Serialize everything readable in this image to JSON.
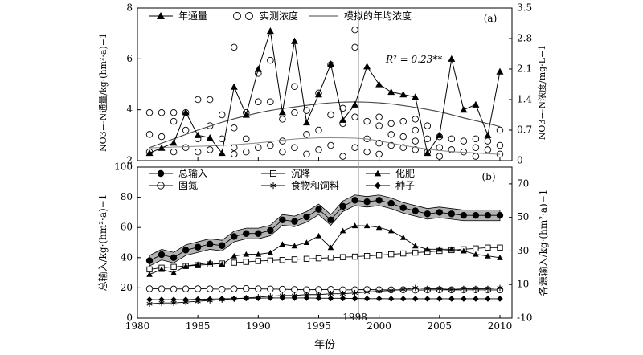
{
  "chart_data": [
    {
      "panel": "(a)",
      "type": "line",
      "x_axis": {
        "range": [
          1980,
          2011
        ],
        "ticks": [],
        "label": ""
      },
      "left_axis": {
        "label": "NO3−-N通量/kg·(hm²·a)−1",
        "range": [
          2,
          8
        ],
        "ticks": [
          2,
          4,
          6,
          8
        ]
      },
      "right_axis": {
        "label": "NO3−-N浓度/mg·L−1",
        "range": [
          0,
          3.5
        ],
        "ticks": [
          0,
          0.7,
          1.4,
          2.1,
          2.8,
          3.5
        ]
      },
      "legend": [
        "年通量",
        "实测浓度",
        "模拟的年均浓度"
      ],
      "annotation": "R² = 0.23**",
      "vline_x": 1998.3,
      "series": [
        {
          "name": "年通量",
          "axis": "left",
          "marker": "triangle",
          "x": [
            1981,
            1982,
            1983,
            1984,
            1985,
            1986,
            1987,
            1988,
            1989,
            1990,
            1991,
            1992,
            1993,
            1994,
            1995,
            1996,
            1997,
            1998,
            1999,
            2000,
            2001,
            2002,
            2003,
            2004,
            2005,
            2006,
            2007,
            2008,
            2009,
            2010
          ],
          "values": [
            2.3,
            2.5,
            2.7,
            3.9,
            3.0,
            2.9,
            2.3,
            4.9,
            3.8,
            5.6,
            7.1,
            3.9,
            6.7,
            3.5,
            4.6,
            5.8,
            3.6,
            4.2,
            5.7,
            5.0,
            4.7,
            4.6,
            4.5,
            2.3,
            3.0,
            6.0,
            4.0,
            4.2,
            3.0,
            5.5
          ]
        },
        {
          "name": "实测浓度",
          "axis": "right",
          "marker": "open-circle",
          "points": [
            [
              1981,
              1.1
            ],
            [
              1981,
              0.6
            ],
            [
              1981,
              0.2
            ],
            [
              1982,
              1.1
            ],
            [
              1982,
              0.55
            ],
            [
              1983,
              1.1
            ],
            [
              1983,
              0.9
            ],
            [
              1983,
              0.2
            ],
            [
              1984,
              1.1
            ],
            [
              1984,
              0.7
            ],
            [
              1984,
              0.3
            ],
            [
              1985,
              1.4
            ],
            [
              1985,
              0.5
            ],
            [
              1985,
              0.2
            ],
            [
              1986,
              1.4
            ],
            [
              1986,
              0.8
            ],
            [
              1986,
              0.25
            ],
            [
              1987,
              1.05
            ],
            [
              1987,
              0.5
            ],
            [
              1988,
              2.6
            ],
            [
              1988,
              0.75
            ],
            [
              1988,
              0.3
            ],
            [
              1988,
              0.15
            ],
            [
              1989,
              1.1
            ],
            [
              1989,
              0.5
            ],
            [
              1989,
              0.2
            ],
            [
              1990,
              2.0
            ],
            [
              1990,
              1.35
            ],
            [
              1990,
              0.3
            ],
            [
              1991,
              2.3
            ],
            [
              1991,
              1.35
            ],
            [
              1991,
              0.35
            ],
            [
              1992,
              0.95
            ],
            [
              1992,
              0.45
            ],
            [
              1992,
              0.2
            ],
            [
              1993,
              1.7
            ],
            [
              1993,
              1.1
            ],
            [
              1993,
              0.3
            ],
            [
              1994,
              1.15
            ],
            [
              1994,
              0.6
            ],
            [
              1994,
              0.15
            ],
            [
              1995,
              1.55
            ],
            [
              1995,
              0.7
            ],
            [
              1995,
              0.25
            ],
            [
              1996,
              2.2
            ],
            [
              1996,
              1.05
            ],
            [
              1996,
              0.35
            ],
            [
              1997,
              1.2
            ],
            [
              1997,
              0.85
            ],
            [
              1997,
              0.1
            ],
            [
              1998,
              3.0
            ],
            [
              1998,
              2.6
            ],
            [
              1998,
              1.0
            ],
            [
              1998,
              0.3
            ],
            [
              1999,
              0.9
            ],
            [
              1999,
              0.5
            ],
            [
              1999,
              0.2
            ],
            [
              2000,
              1.0
            ],
            [
              2000,
              0.8
            ],
            [
              2000,
              0.4
            ],
            [
              2000,
              0.15
            ],
            [
              2001,
              0.85
            ],
            [
              2001,
              0.6
            ],
            [
              2001,
              0.35
            ],
            [
              2002,
              0.9
            ],
            [
              2002,
              0.55
            ],
            [
              2002,
              0.3
            ],
            [
              2003,
              0.95
            ],
            [
              2003,
              0.7
            ],
            [
              2003,
              0.45
            ],
            [
              2003,
              0.25
            ],
            [
              2004,
              0.8
            ],
            [
              2004,
              0.5
            ],
            [
              2004,
              0.2
            ],
            [
              2005,
              0.55
            ],
            [
              2005,
              0.3
            ],
            [
              2005,
              0.1
            ],
            [
              2006,
              0.5
            ],
            [
              2006,
              0.25
            ],
            [
              2007,
              0.45
            ],
            [
              2007,
              0.2
            ],
            [
              2008,
              0.5
            ],
            [
              2008,
              0.3
            ],
            [
              2008,
              0.1
            ],
            [
              2009,
              0.45
            ],
            [
              2009,
              0.25
            ],
            [
              2010,
              0.7
            ],
            [
              2010,
              0.35
            ],
            [
              2010,
              0.15
            ]
          ]
        },
        {
          "name": "模拟的年均浓度",
          "axis": "right",
          "marker": "none",
          "x": [
            1981,
            1983,
            1985,
            1987,
            1989,
            1991,
            1993,
            1995,
            1997,
            1999,
            2001,
            2003,
            2005,
            2007,
            2009,
            2010
          ],
          "values": [
            0.3,
            0.5,
            0.7,
            0.88,
            1.03,
            1.15,
            1.23,
            1.3,
            1.34,
            1.34,
            1.3,
            1.22,
            1.12,
            0.98,
            0.85,
            0.78
          ]
        },
        {
          "name": "",
          "axis": "left",
          "marker": "none",
          "x": [
            1981,
            1984,
            1987,
            1990,
            1993,
            1996,
            1999,
            2002,
            2005,
            2008,
            2010
          ],
          "values": [
            2.5,
            2.55,
            2.6,
            2.7,
            2.85,
            2.9,
            2.85,
            2.6,
            2.4,
            2.3,
            2.25
          ]
        }
      ]
    },
    {
      "panel": "(b)",
      "type": "line",
      "x_axis": {
        "range": [
          1980,
          2011
        ],
        "ticks": [
          1980,
          1985,
          1990,
          1995,
          2000,
          2005,
          2010
        ],
        "highlight_tick": 1998,
        "label": "年份"
      },
      "left_axis": {
        "label": "总输入/kg·(hm²·a)−1",
        "range": [
          0,
          100
        ],
        "ticks": [
          0,
          20,
          40,
          60,
          80,
          100
        ]
      },
      "right_axis": {
        "label": "各源输入/kg·(hm²·a)−1",
        "range": [
          -10,
          80
        ],
        "ticks": [
          -10,
          10,
          30,
          50,
          70
        ]
      },
      "legend": [
        "总输入",
        "沉降",
        "化肥",
        "固氮",
        "食物和饲料",
        "种子"
      ],
      "series": [
        {
          "name": "总输入",
          "axis": "left",
          "marker": "filled-circle",
          "band": 3.5,
          "x": [
            1981,
            1982,
            1983,
            1984,
            1985,
            1986,
            1987,
            1988,
            1989,
            1990,
            1991,
            1992,
            1993,
            1994,
            1995,
            1996,
            1997,
            1998,
            1999,
            2000,
            2001,
            2002,
            2003,
            2004,
            2005,
            2006,
            2007,
            2008,
            2009,
            2010
          ],
          "values": [
            38,
            42,
            40,
            45,
            47,
            49,
            48,
            54,
            56,
            56,
            58,
            65,
            64,
            67,
            72,
            65,
            74,
            78,
            77,
            78,
            76,
            73,
            71,
            69,
            70,
            69,
            68,
            68,
            68,
            68
          ]
        },
        {
          "name": "沉降",
          "axis": "right",
          "marker": "open-square",
          "x": [
            1981,
            1982,
            1983,
            1984,
            1985,
            1986,
            1987,
            1988,
            1989,
            1990,
            1991,
            1992,
            1993,
            1994,
            1995,
            1996,
            1997,
            1998,
            1999,
            2000,
            2001,
            2002,
            2003,
            2004,
            2005,
            2006,
            2007,
            2008,
            2009,
            2010
          ],
          "values": [
            19,
            20,
            20.5,
            21,
            21.5,
            22,
            22.5,
            23,
            23.5,
            24,
            24.3,
            24.6,
            25,
            25.3,
            25.6,
            26,
            26.3,
            26.6,
            27,
            27.5,
            28,
            28.5,
            29,
            29.5,
            30,
            30.5,
            31,
            31.5,
            32,
            32
          ]
        },
        {
          "name": "化肥",
          "axis": "right",
          "marker": "filled-triangle",
          "x": [
            1981,
            1982,
            1983,
            1984,
            1985,
            1986,
            1987,
            1988,
            1989,
            1990,
            1991,
            1992,
            1993,
            1994,
            1995,
            1996,
            1997,
            1998,
            1999,
            2000,
            2001,
            2002,
            2003,
            2004,
            2005,
            2006,
            2007,
            2008,
            2009,
            2010
          ],
          "values": [
            16,
            19,
            17,
            21,
            22,
            23,
            22,
            27,
            28,
            28,
            29,
            34,
            33,
            35,
            39,
            32,
            42,
            45,
            45,
            44,
            42,
            38,
            33,
            31,
            31,
            31,
            30,
            28,
            27,
            26
          ]
        },
        {
          "name": "固氮",
          "axis": "right",
          "marker": "open-circle",
          "x": [
            1981,
            1982,
            1983,
            1984,
            1985,
            1986,
            1987,
            1988,
            1989,
            1990,
            1991,
            1992,
            1993,
            1994,
            1995,
            1996,
            1997,
            1998,
            1999,
            2000,
            2001,
            2002,
            2003,
            2004,
            2005,
            2006,
            2007,
            2008,
            2009,
            2010
          ],
          "values": [
            7.5,
            7.4,
            7.3,
            7.4,
            7.5,
            7.4,
            7.2,
            7.4,
            7.6,
            7.4,
            7.3,
            7.2,
            7.0,
            6.9,
            7.0,
            7.1,
            6.8,
            6.9,
            7.0,
            6.9,
            6.8,
            6.9,
            6.7,
            6.8,
            6.9,
            6.8,
            6.8,
            6.9,
            6.8,
            6.8
          ]
        },
        {
          "name": "食物和饲料",
          "axis": "right",
          "marker": "asterisk",
          "x": [
            1981,
            1982,
            1983,
            1984,
            1985,
            1986,
            1987,
            1988,
            1989,
            1990,
            1991,
            1992,
            1993,
            1994,
            1995,
            1996,
            1997,
            1998,
            1999,
            2000,
            2001,
            2002,
            2003,
            2004,
            2005,
            2006,
            2007,
            2008,
            2009,
            2010
          ],
          "values": [
            -1.5,
            -1,
            -1,
            -0.5,
            0,
            0.5,
            1,
            1.5,
            2,
            2.5,
            3,
            3.5,
            3.5,
            4,
            4,
            4.5,
            4.5,
            5,
            5.5,
            6,
            6.5,
            7,
            8,
            7.5,
            7.5,
            7,
            7.5,
            7.5,
            7.5,
            8
          ]
        },
        {
          "name": "种子",
          "axis": "right",
          "marker": "filled-diamond",
          "x": [
            1981,
            1982,
            1983,
            1984,
            1985,
            1986,
            1987,
            1988,
            1989,
            1990,
            1991,
            1992,
            1993,
            1994,
            1995,
            1996,
            1997,
            1998,
            1999,
            2000,
            2001,
            2002,
            2003,
            2004,
            2005,
            2006,
            2007,
            2008,
            2009,
            2010
          ],
          "values": [
            1,
            1,
            1,
            1,
            1.2,
            1.3,
            1.5,
            1.6,
            1.8,
            1.9,
            2,
            2,
            2,
            2,
            1.9,
            1.8,
            1.8,
            1.7,
            1.6,
            1.6,
            1.5,
            1.5,
            1.5,
            1.5,
            1.5,
            1.5,
            1.5,
            1.5,
            1.5,
            1.5
          ]
        }
      ]
    }
  ]
}
